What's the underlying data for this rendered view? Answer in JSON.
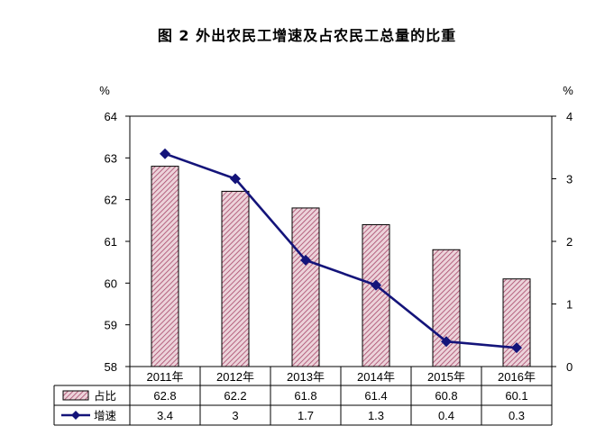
{
  "title": "图 2 外出农民工增速及占农民工总量的比重",
  "chart_data": {
    "type": "bar+line",
    "categories": [
      "2011年",
      "2012年",
      "2013年",
      "2014年",
      "2015年",
      "2016年"
    ],
    "series": [
      {
        "name": "占比",
        "kind": "bar",
        "axis": "left",
        "values": [
          62.8,
          62.2,
          61.8,
          61.4,
          60.8,
          60.1
        ]
      },
      {
        "name": "增速",
        "kind": "line",
        "axis": "right",
        "values": [
          3.4,
          3,
          1.7,
          1.3,
          0.4,
          0.3
        ]
      }
    ],
    "table_values": {
      "占比": [
        "62.8",
        "62.2",
        "61.8",
        "61.4",
        "60.8",
        "60.1"
      ],
      "增速": [
        "3.4",
        "3",
        "1.7",
        "1.3",
        "0.4",
        "0.3"
      ]
    },
    "y_left": {
      "unit": "%",
      "range": [
        58,
        64
      ],
      "ticks": [
        58,
        59,
        60,
        61,
        62,
        63,
        64
      ]
    },
    "y_right": {
      "unit": "%",
      "range": [
        0,
        4
      ],
      "ticks": [
        0,
        1,
        2,
        3,
        4
      ]
    },
    "grid": false,
    "legend": "data-table",
    "colors": {
      "bar_fill": "#e9c8d2",
      "bar_hatch": "#b0506e",
      "bar_outline": "#000000",
      "line": "#14147a"
    }
  }
}
